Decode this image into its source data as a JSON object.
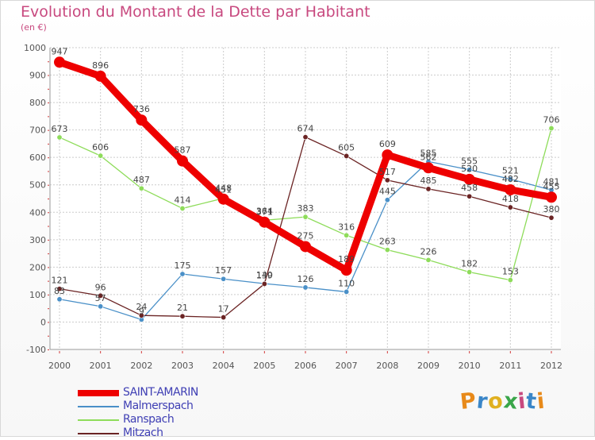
{
  "chart_data": {
    "type": "line",
    "title": "Evolution du Montant de la Dette par Habitant",
    "subtitle": "(en €)",
    "categories": [
      "2000",
      "2001",
      "2002",
      "2003",
      "2004",
      "2005",
      "2006",
      "2007",
      "2008",
      "2009",
      "2010",
      "2011",
      "2012"
    ],
    "ylim": [
      -100,
      1000
    ],
    "yticks": [
      -100,
      0,
      100,
      200,
      300,
      400,
      500,
      600,
      700,
      800,
      900,
      1000
    ],
    "grid": true,
    "series": [
      {
        "name": "SAINT-AMARIN",
        "color": "#ee0000",
        "values": [
          947,
          896,
          736,
          587,
          448,
          364,
          275,
          189,
          609,
          562,
          520,
          482,
          455
        ]
      },
      {
        "name": "Malmerspach",
        "color": "#4a90c8",
        "values": [
          83,
          57,
          9,
          175,
          157,
          140,
          126,
          110,
          445,
          585,
          555,
          521,
          481
        ]
      },
      {
        "name": "Ranspach",
        "color": "#8edc5a",
        "values": [
          673,
          606,
          487,
          414,
          451,
          371,
          383,
          316,
          263,
          226,
          182,
          153,
          706
        ]
      },
      {
        "name": "Mitzach",
        "color": "#6b2424",
        "values": [
          121,
          96,
          24,
          21,
          17,
          139,
          674,
          605,
          517,
          485,
          458,
          418,
          380
        ]
      }
    ]
  },
  "logo": {
    "text": "Proxiti",
    "colors": [
      "#e88a1a",
      "#3a86c8",
      "#e0b020",
      "#3aa64a",
      "#c8497f",
      "#3a86c8",
      "#e88a1a"
    ]
  }
}
